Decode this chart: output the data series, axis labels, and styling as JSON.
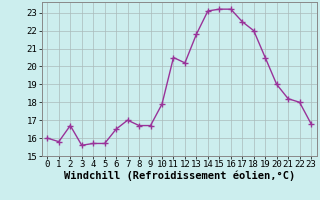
{
  "x": [
    0,
    1,
    2,
    3,
    4,
    5,
    6,
    7,
    8,
    9,
    10,
    11,
    12,
    13,
    14,
    15,
    16,
    17,
    18,
    19,
    20,
    21,
    22,
    23
  ],
  "y": [
    16.0,
    15.8,
    16.7,
    15.6,
    15.7,
    15.7,
    16.5,
    17.0,
    16.7,
    16.7,
    17.9,
    20.5,
    20.2,
    21.8,
    23.1,
    23.2,
    23.2,
    22.5,
    22.0,
    20.5,
    19.0,
    18.2,
    18.0,
    16.8
  ],
  "line_color": "#993399",
  "marker": "+",
  "marker_size": 4,
  "bg_color": "#cceeee",
  "grid_color": "#aabbbb",
  "xlabel": "Windchill (Refroidissement éolien,°C)",
  "xlabel_fontsize": 7.5,
  "ylim": [
    15.0,
    23.6
  ],
  "xlim": [
    -0.5,
    23.5
  ],
  "yticks": [
    15,
    16,
    17,
    18,
    19,
    20,
    21,
    22,
    23
  ],
  "xticks": [
    0,
    1,
    2,
    3,
    4,
    5,
    6,
    7,
    8,
    9,
    10,
    11,
    12,
    13,
    14,
    15,
    16,
    17,
    18,
    19,
    20,
    21,
    22,
    23
  ],
  "tick_fontsize": 6.5,
  "linewidth": 1.0,
  "marker_linewidth": 1.0
}
